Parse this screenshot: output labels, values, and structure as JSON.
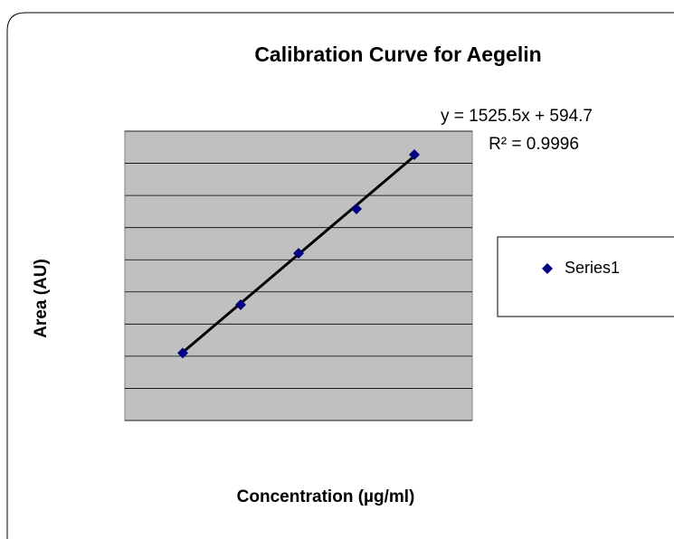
{
  "chart_data": {
    "type": "scatter",
    "title": "Calibration Curve for Aegelin",
    "x_label": "Concentration (µg/ml)",
    "y_label": "Area (AU)",
    "series": [
      {
        "name": "Series1",
        "color": "#000080",
        "x": [
          1,
          2,
          3,
          4,
          5
        ],
        "values": [
          2100,
          3600,
          5200,
          6580,
          8270
        ]
      }
    ],
    "xlim": [
      0,
      6
    ],
    "ylim": [
      0,
      9000
    ],
    "yticks": [
      0,
      1000,
      2000,
      3000,
      4000,
      5000,
      6000,
      7000,
      8000,
      9000
    ],
    "show_tick_labels": false,
    "grid": true,
    "plot_background": "#c0c0c0",
    "legend": "right",
    "trendline": {
      "slope": 1525.5,
      "intercept": 594.7,
      "color": "#000000",
      "equation": "y = 1525.5x + 594.7",
      "r_squared": "R² = 0.9996"
    }
  }
}
